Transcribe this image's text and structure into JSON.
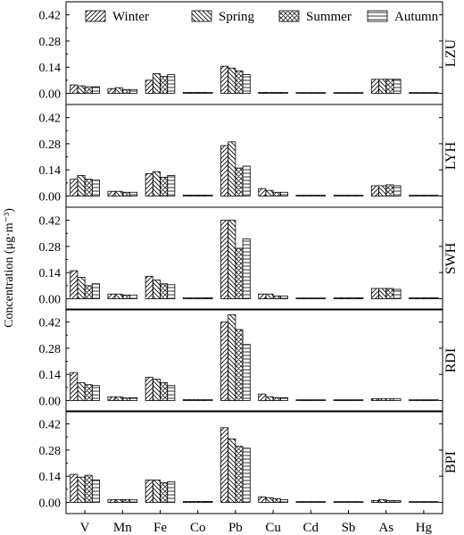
{
  "chart_data": {
    "type": "bar",
    "ylabel": "Concentration (μg·m⁻³)",
    "categories": [
      "V",
      "Mn",
      "Fe",
      "Co",
      "Pb",
      "Cu",
      "Cd",
      "Sb",
      "As",
      "Hg"
    ],
    "legend": {
      "placement": "top",
      "entries": [
        "Winter",
        "Spring",
        "Summer",
        "Autumn"
      ]
    },
    "seasons": [
      {
        "name": "Winter",
        "pattern": "diag-up"
      },
      {
        "name": "Spring",
        "pattern": "diag-down"
      },
      {
        "name": "Summer",
        "pattern": "crosshatch"
      },
      {
        "name": "Autumn",
        "pattern": "horizontal"
      }
    ],
    "yticks": [
      "0.00",
      "0.14",
      "0.28",
      "0.42"
    ],
    "ylim": [
      -0.06,
      0.49
    ],
    "panels": [
      {
        "label": "LZU",
        "values": [
          [
            0.045,
            0.04,
            0.035,
            0.035
          ],
          [
            0.025,
            0.03,
            0.02,
            0.02
          ],
          [
            0.07,
            0.105,
            0.09,
            0.1
          ],
          [
            0.005,
            0.005,
            0.005,
            0.005
          ],
          [
            0.145,
            0.135,
            0.12,
            0.1
          ],
          [
            0.005,
            0.005,
            0.005,
            0.005
          ],
          [
            0.003,
            0.003,
            0.003,
            0.003
          ],
          [
            0.003,
            0.003,
            0.003,
            0.003
          ],
          [
            0.075,
            0.075,
            0.075,
            0.075
          ],
          [
            0.003,
            0.003,
            0.003,
            0.003
          ]
        ]
      },
      {
        "label": "LYH",
        "values": [
          [
            0.09,
            0.11,
            0.09,
            0.085
          ],
          [
            0.025,
            0.025,
            0.02,
            0.02
          ],
          [
            0.12,
            0.13,
            0.1,
            0.11
          ],
          [
            0.005,
            0.005,
            0.005,
            0.005
          ],
          [
            0.27,
            0.29,
            0.15,
            0.16
          ],
          [
            0.04,
            0.03,
            0.02,
            0.02
          ],
          [
            0.003,
            0.003,
            0.003,
            0.003
          ],
          [
            0.003,
            0.003,
            0.003,
            0.003
          ],
          [
            0.055,
            0.055,
            0.06,
            0.055
          ],
          [
            0.003,
            0.003,
            0.003,
            0.003
          ]
        ]
      },
      {
        "label": "SWH",
        "values": [
          [
            0.15,
            0.115,
            0.07,
            0.08
          ],
          [
            0.025,
            0.025,
            0.02,
            0.02
          ],
          [
            0.12,
            0.1,
            0.08,
            0.075
          ],
          [
            0.005,
            0.005,
            0.005,
            0.005
          ],
          [
            0.42,
            0.42,
            0.27,
            0.32
          ],
          [
            0.025,
            0.025,
            0.015,
            0.015
          ],
          [
            0.003,
            0.003,
            0.003,
            0.003
          ],
          [
            0.005,
            0.005,
            0.005,
            0.005
          ],
          [
            0.055,
            0.055,
            0.055,
            0.05
          ],
          [
            0.005,
            0.005,
            0.005,
            0.005
          ]
        ]
      },
      {
        "label": "RDI",
        "values": [
          [
            0.15,
            0.095,
            0.085,
            0.08
          ],
          [
            0.02,
            0.02,
            0.015,
            0.015
          ],
          [
            0.125,
            0.115,
            0.095,
            0.08
          ],
          [
            0.005,
            0.005,
            0.005,
            0.005
          ],
          [
            0.42,
            0.46,
            0.38,
            0.3
          ],
          [
            0.035,
            0.02,
            0.015,
            0.015
          ],
          [
            0.003,
            0.003,
            0.003,
            0.003
          ],
          [
            0.003,
            0.003,
            0.003,
            0.003
          ],
          [
            0.01,
            0.01,
            0.01,
            0.01
          ],
          [
            0.003,
            0.003,
            0.003,
            0.003
          ]
        ]
      },
      {
        "label": "BPI",
        "values": [
          [
            0.15,
            0.135,
            0.145,
            0.12
          ],
          [
            0.015,
            0.015,
            0.015,
            0.015
          ],
          [
            0.12,
            0.12,
            0.105,
            0.11
          ],
          [
            0.005,
            0.005,
            0.005,
            0.005
          ],
          [
            0.4,
            0.34,
            0.3,
            0.29
          ],
          [
            0.03,
            0.025,
            0.02,
            0.015
          ],
          [
            0.003,
            0.003,
            0.003,
            0.003
          ],
          [
            0.003,
            0.003,
            0.003,
            0.003
          ],
          [
            0.01,
            0.015,
            0.01,
            0.01
          ],
          [
            0.003,
            0.003,
            0.003,
            0.003
          ]
        ]
      }
    ],
    "grid": false
  }
}
